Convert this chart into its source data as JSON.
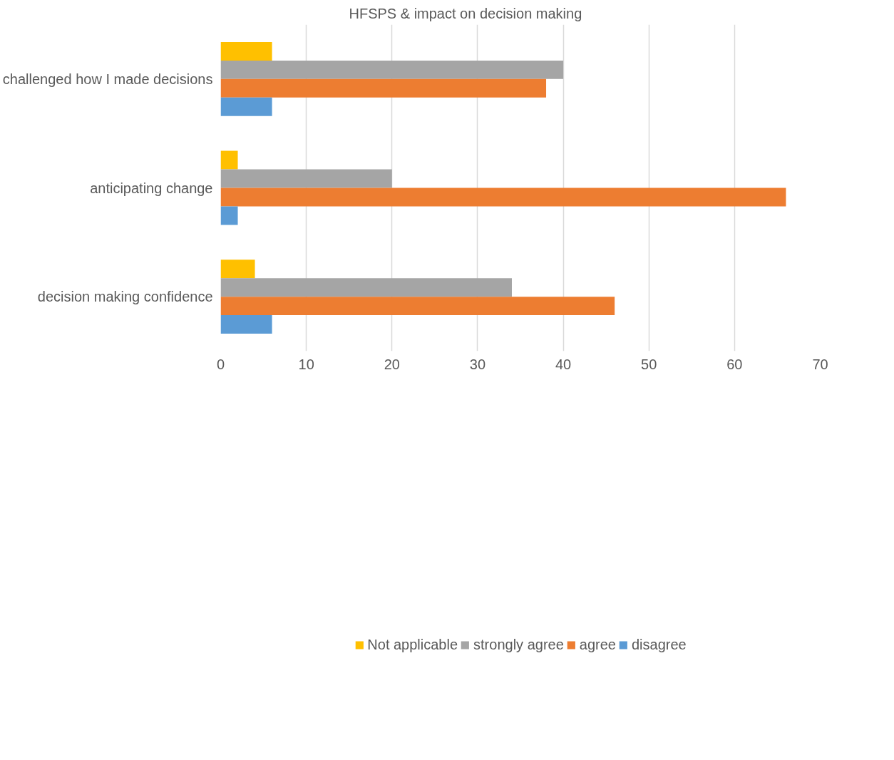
{
  "chart_data": {
    "type": "bar",
    "orientation": "horizontal",
    "title": "HFSPS & impact on decision making",
    "categories": [
      "challenged how I made decisions",
      "anticipating change",
      "decision making confidence"
    ],
    "series": [
      {
        "name": "Not applicable",
        "color": "#ffc000",
        "values": [
          6,
          2,
          4
        ]
      },
      {
        "name": "strongly agree",
        "color": "#a5a5a5",
        "values": [
          40,
          20,
          34
        ]
      },
      {
        "name": "agree",
        "color": "#ed7d31",
        "values": [
          38,
          66,
          46
        ]
      },
      {
        "name": "disagree",
        "color": "#5b9bd5",
        "values": [
          6,
          2,
          6
        ]
      }
    ],
    "xlim": [
      0,
      70
    ],
    "xticks": [
      0,
      10,
      20,
      30,
      40,
      50,
      60,
      70
    ],
    "grid": "x",
    "legend": "bottom"
  }
}
